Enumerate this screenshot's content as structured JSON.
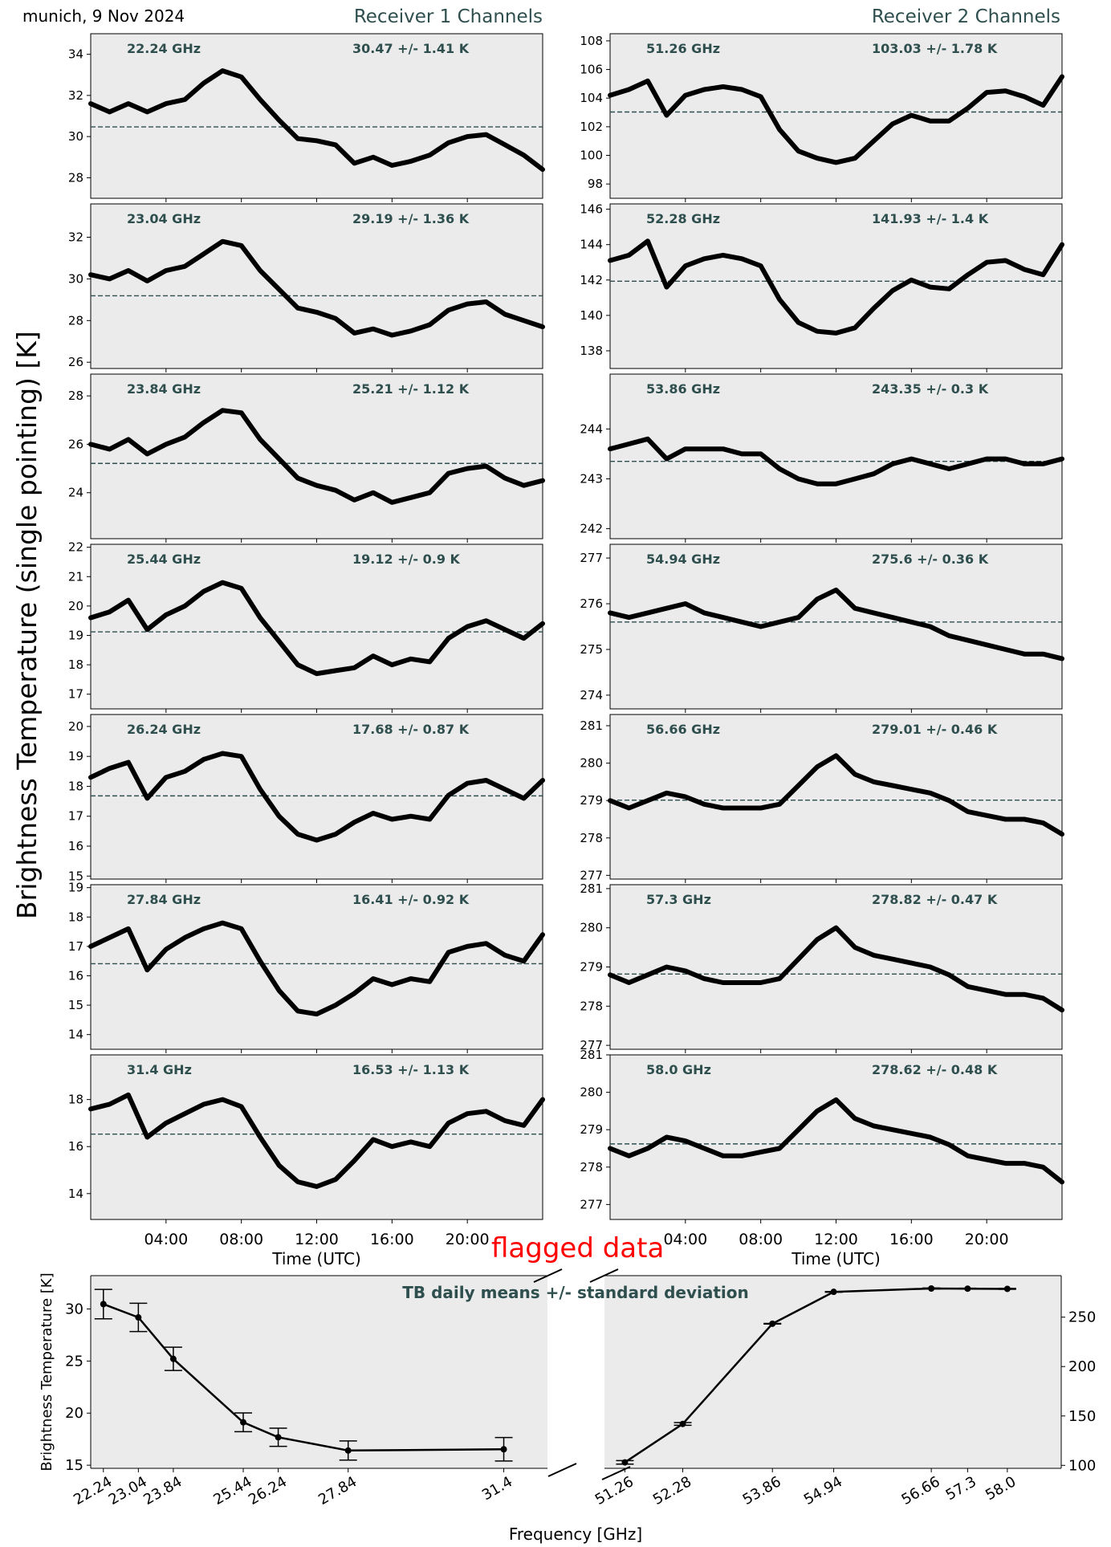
{
  "header": {
    "place_date": "munich, 9 Nov 2024",
    "receiver1_title": "Receiver 1 Channels",
    "receiver2_title": "Receiver 2 Channels",
    "ylabel": "Brightness Temperature (single pointing) [K]",
    "flagged_label": "flagged data"
  },
  "colors": {
    "panel_bg": "#ebebeb",
    "trace": "#000000",
    "mean_line": "#2f4f4f",
    "annotation": "#2f4f4f",
    "flag": "#ff0000"
  },
  "chart_data": [
    {
      "type": "line",
      "receiver": "Receiver 1 Channels",
      "xlabel": "Time (UTC)",
      "xticks": [
        "04:00",
        "08:00",
        "12:00",
        "16:00",
        "20:00"
      ],
      "xlim_hours": [
        0,
        24
      ],
      "mean_line": "dashed",
      "panels": [
        {
          "freq_label": "22.24 GHz",
          "stat_label": "30.47 +/- 1.41 K",
          "mean": 30.47,
          "ylim": [
            27,
            35
          ],
          "yticks": [
            28,
            30,
            32,
            34
          ],
          "x": [
            0,
            1,
            2,
            3,
            4,
            5,
            6,
            7,
            8,
            9,
            10,
            11,
            12,
            13,
            14,
            15,
            16,
            17,
            18,
            19,
            20,
            21,
            22,
            23,
            24
          ],
          "y": [
            31.6,
            31.2,
            31.6,
            31.2,
            31.6,
            31.8,
            32.6,
            33.2,
            32.9,
            31.8,
            30.8,
            29.9,
            29.8,
            29.6,
            28.7,
            29.0,
            28.6,
            28.8,
            29.1,
            29.7,
            30.0,
            30.1,
            29.6,
            29.1,
            28.4
          ]
        },
        {
          "freq_label": "23.04 GHz",
          "stat_label": "29.19 +/- 1.36 K",
          "mean": 29.19,
          "ylim": [
            25.7,
            33.6
          ],
          "yticks": [
            26,
            28,
            30,
            32
          ],
          "x": [
            0,
            1,
            2,
            3,
            4,
            5,
            6,
            7,
            8,
            9,
            10,
            11,
            12,
            13,
            14,
            15,
            16,
            17,
            18,
            19,
            20,
            21,
            22,
            23,
            24
          ],
          "y": [
            30.2,
            30.0,
            30.4,
            29.9,
            30.4,
            30.6,
            31.2,
            31.8,
            31.6,
            30.4,
            29.5,
            28.6,
            28.4,
            28.1,
            27.4,
            27.6,
            27.3,
            27.5,
            27.8,
            28.5,
            28.8,
            28.9,
            28.3,
            28.0,
            27.7
          ]
        },
        {
          "freq_label": "23.84 GHz",
          "stat_label": "25.21 +/- 1.12 K",
          "mean": 25.21,
          "ylim": [
            22.1,
            28.9
          ],
          "yticks": [
            24,
            26,
            28
          ],
          "x": [
            0,
            1,
            2,
            3,
            4,
            5,
            6,
            7,
            8,
            9,
            10,
            11,
            12,
            13,
            14,
            15,
            16,
            17,
            18,
            19,
            20,
            21,
            22,
            23,
            24
          ],
          "y": [
            26.0,
            25.8,
            26.2,
            25.6,
            26.0,
            26.3,
            26.9,
            27.4,
            27.3,
            26.2,
            25.4,
            24.6,
            24.3,
            24.1,
            23.7,
            24.0,
            23.6,
            23.8,
            24.0,
            24.8,
            25.0,
            25.1,
            24.6,
            24.3,
            24.5
          ]
        },
        {
          "freq_label": "25.44 GHz",
          "stat_label": "19.12 +/- 0.9 K",
          "mean": 19.12,
          "ylim": [
            16.5,
            22.1
          ],
          "yticks": [
            17,
            18,
            19,
            20,
            21,
            22
          ],
          "x": [
            0,
            1,
            2,
            3,
            4,
            5,
            6,
            7,
            8,
            9,
            10,
            11,
            12,
            13,
            14,
            15,
            16,
            17,
            18,
            19,
            20,
            21,
            22,
            23,
            24
          ],
          "y": [
            19.6,
            19.8,
            20.2,
            19.2,
            19.7,
            20.0,
            20.5,
            20.8,
            20.6,
            19.6,
            18.8,
            18.0,
            17.7,
            17.8,
            17.9,
            18.3,
            18.0,
            18.2,
            18.1,
            18.9,
            19.3,
            19.5,
            19.2,
            18.9,
            19.4
          ]
        },
        {
          "freq_label": "26.24 GHz",
          "stat_label": "17.68 +/- 0.87 K",
          "mean": 17.68,
          "ylim": [
            14.9,
            20.4
          ],
          "yticks": [
            15,
            16,
            17,
            18,
            19,
            20
          ],
          "x": [
            0,
            1,
            2,
            3,
            4,
            5,
            6,
            7,
            8,
            9,
            10,
            11,
            12,
            13,
            14,
            15,
            16,
            17,
            18,
            19,
            20,
            21,
            22,
            23,
            24
          ],
          "y": [
            18.3,
            18.6,
            18.8,
            17.6,
            18.3,
            18.5,
            18.9,
            19.1,
            19.0,
            17.9,
            17.0,
            16.4,
            16.2,
            16.4,
            16.8,
            17.1,
            16.9,
            17.0,
            16.9,
            17.7,
            18.1,
            18.2,
            17.9,
            17.6,
            18.2
          ]
        },
        {
          "freq_label": "27.84 GHz",
          "stat_label": "16.41 +/- 0.92 K",
          "mean": 16.41,
          "ylim": [
            13.5,
            19.1
          ],
          "yticks": [
            14,
            15,
            16,
            17,
            18,
            19
          ],
          "x": [
            0,
            1,
            2,
            3,
            4,
            5,
            6,
            7,
            8,
            9,
            10,
            11,
            12,
            13,
            14,
            15,
            16,
            17,
            18,
            19,
            20,
            21,
            22,
            23,
            24
          ],
          "y": [
            17.0,
            17.3,
            17.6,
            16.2,
            16.9,
            17.3,
            17.6,
            17.8,
            17.6,
            16.5,
            15.5,
            14.8,
            14.7,
            15.0,
            15.4,
            15.9,
            15.7,
            15.9,
            15.8,
            16.8,
            17.0,
            17.1,
            16.7,
            16.5,
            17.4
          ]
        },
        {
          "freq_label": "31.4 GHz",
          "stat_label": "16.53 +/- 1.13 K",
          "mean": 16.53,
          "ylim": [
            12.9,
            19.9
          ],
          "yticks": [
            14,
            16,
            18
          ],
          "x": [
            0,
            1,
            2,
            3,
            4,
            5,
            6,
            7,
            8,
            9,
            10,
            11,
            12,
            13,
            14,
            15,
            16,
            17,
            18,
            19,
            20,
            21,
            22,
            23,
            24
          ],
          "y": [
            17.6,
            17.8,
            18.2,
            16.4,
            17.0,
            17.4,
            17.8,
            18.0,
            17.7,
            16.4,
            15.2,
            14.5,
            14.3,
            14.6,
            15.4,
            16.3,
            16.0,
            16.2,
            16.0,
            17.0,
            17.4,
            17.5,
            17.1,
            16.9,
            18.0
          ]
        }
      ]
    },
    {
      "type": "line",
      "receiver": "Receiver 2 Channels",
      "xlabel": "Time (UTC)",
      "xticks": [
        "04:00",
        "08:00",
        "12:00",
        "16:00",
        "20:00"
      ],
      "xlim_hours": [
        0,
        24
      ],
      "mean_line": "dashed",
      "panels": [
        {
          "freq_label": "51.26 GHz",
          "stat_label": "103.03 +/- 1.78 K",
          "mean": 103.03,
          "ylim": [
            97,
            108.5
          ],
          "yticks": [
            98,
            100,
            102,
            104,
            106,
            108
          ],
          "x": [
            0,
            1,
            2,
            3,
            4,
            5,
            6,
            7,
            8,
            9,
            10,
            11,
            12,
            13,
            14,
            15,
            16,
            17,
            18,
            19,
            20,
            21,
            22,
            23,
            24
          ],
          "y": [
            104.2,
            104.6,
            105.2,
            102.8,
            104.2,
            104.6,
            104.8,
            104.6,
            104.1,
            101.8,
            100.3,
            99.8,
            99.5,
            99.8,
            101.0,
            102.2,
            102.8,
            102.4,
            102.4,
            103.3,
            104.4,
            104.5,
            104.1,
            103.5,
            105.5
          ]
        },
        {
          "freq_label": "52.28 GHz",
          "stat_label": "141.93 +/- 1.4 K",
          "mean": 141.93,
          "ylim": [
            137,
            146.3
          ],
          "yticks": [
            138,
            140,
            142,
            144,
            146
          ],
          "x": [
            0,
            1,
            2,
            3,
            4,
            5,
            6,
            7,
            8,
            9,
            10,
            11,
            12,
            13,
            14,
            15,
            16,
            17,
            18,
            19,
            20,
            21,
            22,
            23,
            24
          ],
          "y": [
            143.1,
            143.4,
            144.2,
            141.6,
            142.8,
            143.2,
            143.4,
            143.2,
            142.8,
            140.9,
            139.6,
            139.1,
            139.0,
            139.3,
            140.4,
            141.4,
            142.0,
            141.6,
            141.5,
            142.3,
            143.0,
            143.1,
            142.6,
            142.3,
            144.0
          ]
        },
        {
          "freq_label": "53.86 GHz",
          "stat_label": "243.35 +/- 0.3 K",
          "mean": 243.35,
          "ylim": [
            241.8,
            245.1
          ],
          "yticks": [
            242,
            243,
            244
          ],
          "x": [
            0,
            1,
            2,
            3,
            4,
            5,
            6,
            7,
            8,
            9,
            10,
            11,
            12,
            13,
            14,
            15,
            16,
            17,
            18,
            19,
            20,
            21,
            22,
            23,
            24
          ],
          "y": [
            243.6,
            243.7,
            243.8,
            243.4,
            243.6,
            243.6,
            243.6,
            243.5,
            243.5,
            243.2,
            243.0,
            242.9,
            242.9,
            243.0,
            243.1,
            243.3,
            243.4,
            243.3,
            243.2,
            243.3,
            243.4,
            243.4,
            243.3,
            243.3,
            243.4
          ]
        },
        {
          "freq_label": "54.94 GHz",
          "stat_label": "275.6 +/- 0.36 K",
          "mean": 275.6,
          "ylim": [
            273.7,
            277.3
          ],
          "yticks": [
            274,
            275,
            276,
            277
          ],
          "x": [
            0,
            1,
            2,
            3,
            4,
            5,
            6,
            7,
            8,
            9,
            10,
            11,
            12,
            13,
            14,
            15,
            16,
            17,
            18,
            19,
            20,
            21,
            22,
            23,
            24
          ],
          "y": [
            275.8,
            275.7,
            275.8,
            275.9,
            276.0,
            275.8,
            275.7,
            275.6,
            275.5,
            275.6,
            275.7,
            276.1,
            276.3,
            275.9,
            275.8,
            275.7,
            275.6,
            275.5,
            275.3,
            275.2,
            275.1,
            275.0,
            274.9,
            274.9,
            274.8
          ]
        },
        {
          "freq_label": "56.66 GHz",
          "stat_label": "279.01 +/- 0.46 K",
          "mean": 279.01,
          "ylim": [
            276.9,
            281.3
          ],
          "yticks": [
            277,
            278,
            279,
            280,
            281
          ],
          "x": [
            0,
            1,
            2,
            3,
            4,
            5,
            6,
            7,
            8,
            9,
            10,
            11,
            12,
            13,
            14,
            15,
            16,
            17,
            18,
            19,
            20,
            21,
            22,
            23,
            24
          ],
          "y": [
            279.0,
            278.8,
            279.0,
            279.2,
            279.1,
            278.9,
            278.8,
            278.8,
            278.8,
            278.9,
            279.4,
            279.9,
            280.2,
            279.7,
            279.5,
            279.4,
            279.3,
            279.2,
            279.0,
            278.7,
            278.6,
            278.5,
            278.5,
            278.4,
            278.1
          ]
        },
        {
          "freq_label": "57.3 GHz",
          "stat_label": "278.82 +/- 0.47 K",
          "mean": 278.82,
          "ylim": [
            276.9,
            281.1
          ],
          "yticks": [
            277,
            278,
            279,
            280,
            281
          ],
          "x": [
            0,
            1,
            2,
            3,
            4,
            5,
            6,
            7,
            8,
            9,
            10,
            11,
            12,
            13,
            14,
            15,
            16,
            17,
            18,
            19,
            20,
            21,
            22,
            23,
            24
          ],
          "y": [
            278.8,
            278.6,
            278.8,
            279.0,
            278.9,
            278.7,
            278.6,
            278.6,
            278.6,
            278.7,
            279.2,
            279.7,
            280.0,
            279.5,
            279.3,
            279.2,
            279.1,
            279.0,
            278.8,
            278.5,
            278.4,
            278.3,
            278.3,
            278.2,
            277.9
          ]
        },
        {
          "freq_label": "58.0 GHz",
          "stat_label": "278.62 +/- 0.48 K",
          "mean": 278.62,
          "ylim": [
            276.6,
            281.0
          ],
          "yticks": [
            277,
            278,
            279,
            280,
            281
          ],
          "x": [
            0,
            1,
            2,
            3,
            4,
            5,
            6,
            7,
            8,
            9,
            10,
            11,
            12,
            13,
            14,
            15,
            16,
            17,
            18,
            19,
            20,
            21,
            22,
            23,
            24
          ],
          "y": [
            278.5,
            278.3,
            278.5,
            278.8,
            278.7,
            278.5,
            278.3,
            278.3,
            278.4,
            278.5,
            279.0,
            279.5,
            279.8,
            279.3,
            279.1,
            279.0,
            278.9,
            278.8,
            278.6,
            278.3,
            278.2,
            278.1,
            278.1,
            278.0,
            277.6
          ]
        }
      ]
    },
    {
      "type": "line",
      "title": "TB daily means +/- standard deviation",
      "xlabel": "Frequency [GHz]",
      "ylabel": "Brightness Temperature [K]",
      "error_bars": true,
      "left": {
        "x": [
          22.24,
          23.04,
          23.84,
          25.44,
          26.24,
          27.84,
          31.4
        ],
        "tick_labels": [
          "22.24",
          "23.04",
          "23.84",
          "25.44",
          "26.24",
          "27.84",
          "31.4"
        ],
        "y": [
          30.47,
          29.19,
          25.21,
          19.12,
          17.68,
          16.41,
          16.53
        ],
        "err": [
          1.41,
          1.36,
          1.12,
          0.9,
          0.87,
          0.92,
          1.13
        ],
        "xlim": [
          21.95,
          32.4
        ],
        "ylim": [
          14.7,
          33.2
        ],
        "yticks": [
          15,
          20,
          25,
          30
        ]
      },
      "right": {
        "x": [
          51.26,
          52.28,
          53.86,
          54.94,
          56.66,
          57.3,
          58.0
        ],
        "tick_labels": [
          "51.26",
          "52.28",
          "53.86",
          "54.94",
          "56.66",
          "57.3",
          "58.0"
        ],
        "y": [
          103.03,
          141.93,
          243.35,
          275.6,
          279.01,
          278.82,
          278.62
        ],
        "err": [
          1.78,
          1.4,
          0.3,
          0.36,
          0.46,
          0.47,
          0.48
        ],
        "xlim": [
          50.9,
          58.95
        ],
        "ylim": [
          97,
          292
        ],
        "yticks": [
          100,
          150,
          200,
          250
        ]
      }
    }
  ]
}
